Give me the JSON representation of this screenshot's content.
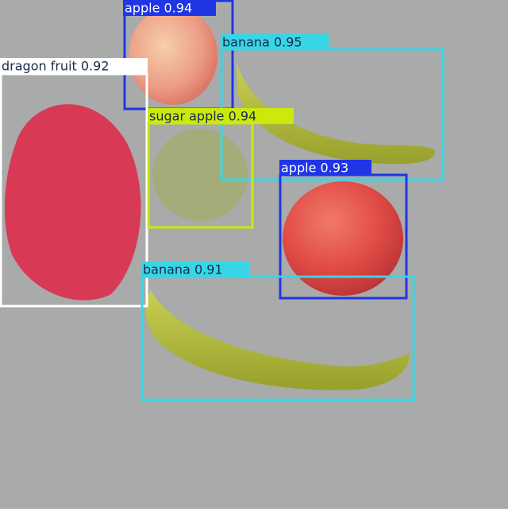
{
  "detections": [
    {
      "label": "apple 0.94"
    },
    {
      "label": "banana 0.95"
    },
    {
      "label": "dragon fruit 0.92"
    },
    {
      "label": "sugar apple 0.94"
    },
    {
      "label": "apple 0.93"
    },
    {
      "label": "banana 0.91"
    }
  ]
}
